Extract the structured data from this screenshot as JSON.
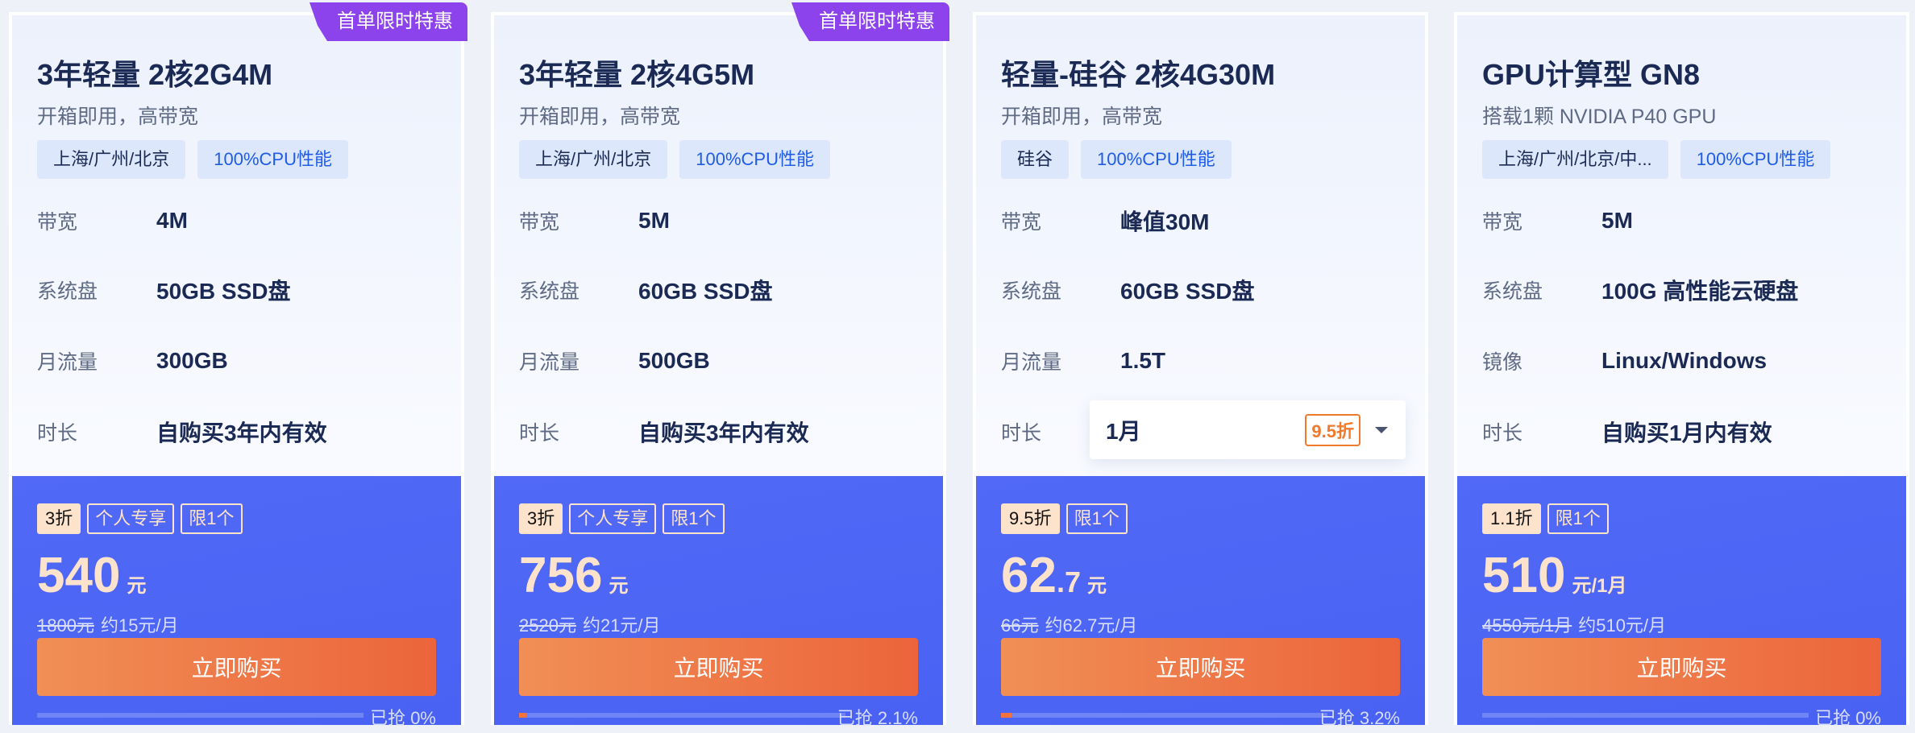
{
  "colors": {
    "accent_blue": "#4f67f5",
    "badge_purple": "#8d43ec",
    "buy_orange": "#ec663c",
    "price_cream": "#fde3cc"
  },
  "cards": [
    {
      "badge": "首单限时特惠",
      "title": "3年轻量 2核2G4M",
      "subtitle": "开箱即用，高带宽",
      "tags": [
        "上海/广州/北京",
        "100%CPU性能"
      ],
      "specs": [
        {
          "label": "带宽",
          "value": "4M"
        },
        {
          "label": "系统盘",
          "value": "50GB SSD盘"
        },
        {
          "label": "月流量",
          "value": "300GB"
        },
        {
          "label": "时长",
          "value": "自购买3年内有效"
        }
      ],
      "promo_tags": [
        "3折",
        "个人专享",
        "限1个"
      ],
      "price": "540",
      "price_decimal": "",
      "unit": "元",
      "original_price": "1800元",
      "monthly": "约15元/月",
      "buy_label": "立即购买",
      "sold_label": "已抢 0%",
      "sold_percent": 0
    },
    {
      "badge": "首单限时特惠",
      "title": "3年轻量 2核4G5M",
      "subtitle": "开箱即用，高带宽",
      "tags": [
        "上海/广州/北京",
        "100%CPU性能"
      ],
      "specs": [
        {
          "label": "带宽",
          "value": "5M"
        },
        {
          "label": "系统盘",
          "value": "60GB SSD盘"
        },
        {
          "label": "月流量",
          "value": "500GB"
        },
        {
          "label": "时长",
          "value": "自购买3年内有效"
        }
      ],
      "promo_tags": [
        "3折",
        "个人专享",
        "限1个"
      ],
      "price": "756",
      "price_decimal": "",
      "unit": "元",
      "original_price": "2520元",
      "monthly": "约21元/月",
      "buy_label": "立即购买",
      "sold_label": "已抢 2.1%",
      "sold_percent": 2.1
    },
    {
      "title": "轻量-硅谷 2核4G30M",
      "subtitle": "开箱即用，高带宽",
      "tags": [
        "硅谷",
        "100%CPU性能"
      ],
      "specs": [
        {
          "label": "带宽",
          "value": "峰值30M"
        },
        {
          "label": "系统盘",
          "value": "60GB SSD盘"
        },
        {
          "label": "月流量",
          "value": "1.5T"
        },
        {
          "label": "时长",
          "value": ""
        }
      ],
      "duration_select": {
        "value": "1月",
        "discount": "9.5折"
      },
      "promo_tags": [
        "9.5折",
        "限1个"
      ],
      "price": "62",
      "price_decimal": ".7",
      "unit": "元",
      "original_price": "66元",
      "monthly": "约62.7元/月",
      "buy_label": "立即购买",
      "sold_label": "已抢 3.2%",
      "sold_percent": 3.2
    },
    {
      "title": "GPU计算型 GN8",
      "subtitle": "搭载1颗 NVIDIA P40 GPU",
      "tags": [
        "上海/广州/北京/中...",
        "100%CPU性能"
      ],
      "specs": [
        {
          "label": "带宽",
          "value": "5M"
        },
        {
          "label": "系统盘",
          "value": "100G 高性能云硬盘"
        },
        {
          "label": "镜像",
          "value": "Linux/Windows"
        },
        {
          "label": "时长",
          "value": "自购买1月内有效"
        }
      ],
      "promo_tags": [
        "1.1折",
        "限1个"
      ],
      "price": "510",
      "price_decimal": "",
      "unit": "元/1月",
      "original_price": "4550元/1月",
      "monthly": "约510元/月",
      "buy_label": "立即购买",
      "sold_label": "已抢 0%",
      "sold_percent": 0
    }
  ]
}
